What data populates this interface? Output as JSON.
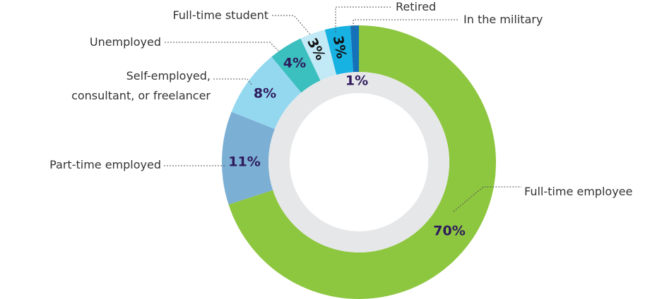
{
  "chart_data": {
    "type": "donut",
    "categories": [
      "Full-time employee",
      "Part-time employed",
      "Self-employed,\nconsultant, or freelancer",
      "Unemployed",
      "Full-time student",
      "Retired",
      "In the military"
    ],
    "values": [
      70,
      11,
      8,
      4,
      3,
      3,
      1
    ],
    "value_labels": [
      "70%",
      "11%",
      "8%",
      "4%",
      "3%",
      "3%",
      "1%"
    ],
    "colors": [
      "#8dc63f",
      "#7bafd4",
      "#94d8f0",
      "#3cbfbf",
      "#c2e9f6",
      "#17b1e2",
      "#1572b9"
    ]
  }
}
